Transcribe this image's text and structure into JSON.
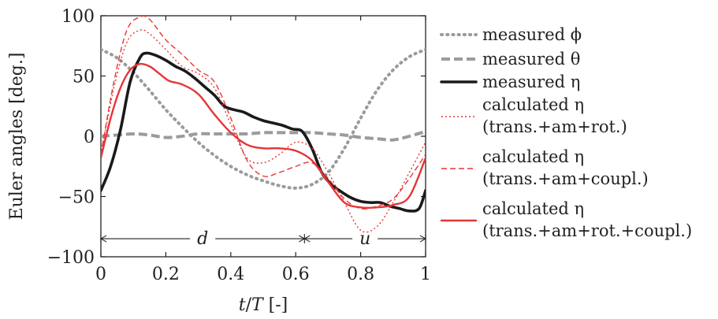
{
  "chart_data": {
    "type": "line",
    "xlabel": "t/T [-]",
    "ylabel": "Euler angles [deg.]",
    "xlim": [
      0,
      1
    ],
    "ylim": [
      -100,
      100
    ],
    "x_ticks": [
      0,
      0.2,
      0.4,
      0.6,
      0.8,
      1
    ],
    "x_tick_labels": [
      "0",
      "0.2",
      "0.4",
      "0.6",
      "0.8",
      "1"
    ],
    "y_ticks": [
      -100,
      -50,
      0,
      50,
      100
    ],
    "y_tick_labels": [
      "−100",
      "−50",
      "0",
      "50",
      "100"
    ],
    "grid": false,
    "legend_placement": "right-outside",
    "phases": {
      "y": -85,
      "boundaries": [
        0,
        0.627,
        1
      ],
      "labels": [
        "d",
        "u"
      ]
    },
    "series": [
      {
        "name": "measured ϕ",
        "color": "#9b9b9b",
        "style": "dotted-thick",
        "x": [
          0,
          0.05,
          0.1,
          0.15,
          0.2,
          0.25,
          0.3,
          0.35,
          0.4,
          0.45,
          0.5,
          0.55,
          0.6,
          0.65,
          0.7,
          0.75,
          0.8,
          0.85,
          0.9,
          0.95,
          1.0
        ],
        "y": [
          72,
          65,
          53,
          38,
          22,
          8,
          -5,
          -16,
          -25,
          -32,
          -37,
          -41,
          -43,
          -40,
          -30,
          -10,
          15,
          38,
          55,
          66,
          72
        ]
      },
      {
        "name": "measured θ",
        "color": "#9b9b9b",
        "style": "dashed-thick",
        "x": [
          0,
          0.05,
          0.1,
          0.15,
          0.2,
          0.25,
          0.3,
          0.35,
          0.4,
          0.45,
          0.5,
          0.55,
          0.6,
          0.65,
          0.7,
          0.75,
          0.8,
          0.85,
          0.9,
          0.95,
          1.0
        ],
        "y": [
          0,
          1,
          2,
          1,
          -1,
          0,
          2,
          2,
          2,
          2,
          3,
          3,
          3,
          3,
          2,
          1,
          -1,
          -2,
          -3,
          0,
          4
        ]
      },
      {
        "name": "measured η",
        "color": "#1a1a1a",
        "style": "solid-thick",
        "x": [
          0,
          0.03,
          0.06,
          0.09,
          0.12,
          0.14,
          0.17,
          0.2,
          0.23,
          0.26,
          0.29,
          0.32,
          0.35,
          0.38,
          0.41,
          0.44,
          0.47,
          0.5,
          0.53,
          0.56,
          0.59,
          0.62,
          0.65,
          0.68,
          0.71,
          0.74,
          0.77,
          0.8,
          0.83,
          0.86,
          0.89,
          0.92,
          0.95,
          0.98,
          1.0
        ],
        "y": [
          -45,
          -25,
          5,
          45,
          65,
          69,
          67,
          63,
          58,
          54,
          48,
          41,
          34,
          25,
          22,
          20,
          16,
          13,
          11,
          9,
          6,
          4,
          -10,
          -30,
          -40,
          -46,
          -51,
          -54,
          -55,
          -55,
          -58,
          -60,
          -62,
          -60,
          -45
        ]
      },
      {
        "name": "calculated η",
        "name_line2": "(trans.+am+rot.)",
        "color": "#e63535",
        "style": "dotted-thin",
        "x": [
          0,
          0.04,
          0.08,
          0.12,
          0.15,
          0.2,
          0.25,
          0.3,
          0.35,
          0.4,
          0.45,
          0.5,
          0.55,
          0.6,
          0.65,
          0.7,
          0.75,
          0.8,
          0.85,
          0.9,
          0.95,
          1.0
        ],
        "y": [
          -15,
          40,
          78,
          88,
          85,
          72,
          58,
          52,
          40,
          10,
          -18,
          -22,
          -15,
          -5,
          -10,
          -30,
          -55,
          -78,
          -75,
          -55,
          -30,
          -5
        ]
      },
      {
        "name": "calculated η",
        "name_line2": "(trans.+am+coupl.)",
        "color": "#e63535",
        "style": "dashed-thin",
        "x": [
          0,
          0.04,
          0.08,
          0.12,
          0.15,
          0.2,
          0.25,
          0.3,
          0.35,
          0.4,
          0.45,
          0.5,
          0.55,
          0.6,
          0.65,
          0.7,
          0.75,
          0.8,
          0.85,
          0.9,
          0.95,
          1.0
        ],
        "y": [
          -15,
          45,
          88,
          99,
          97,
          80,
          68,
          55,
          45,
          15,
          -20,
          -33,
          -30,
          -25,
          -22,
          -35,
          -52,
          -60,
          -58,
          -52,
          -35,
          -15
        ]
      },
      {
        "name": "calculated η",
        "name_line2": "(trans.+am+rot.+coupl.)",
        "color": "#e63535",
        "style": "solid-medium",
        "x": [
          0,
          0.03,
          0.06,
          0.09,
          0.12,
          0.15,
          0.18,
          0.21,
          0.25,
          0.3,
          0.35,
          0.4,
          0.45,
          0.5,
          0.55,
          0.6,
          0.65,
          0.7,
          0.75,
          0.8,
          0.85,
          0.9,
          0.95,
          1.0
        ],
        "y": [
          -18,
          15,
          40,
          55,
          60,
          58,
          52,
          46,
          43,
          35,
          18,
          3,
          -7,
          -10,
          -10,
          -12,
          -20,
          -38,
          -55,
          -59,
          -59,
          -57,
          -50,
          -18
        ]
      }
    ]
  }
}
